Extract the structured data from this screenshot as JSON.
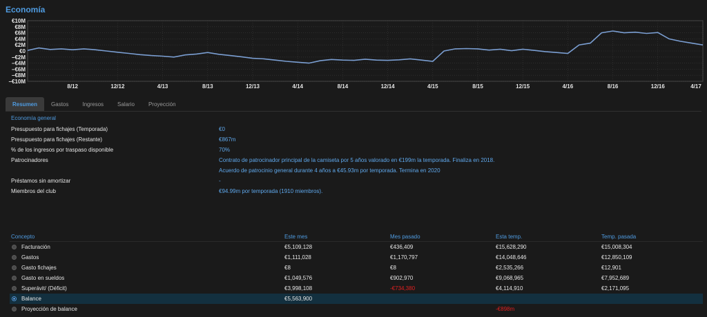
{
  "page": {
    "title": "Economía"
  },
  "chart_data": {
    "type": "line",
    "y_tick_labels": [
      "€10M",
      "€8M",
      "€6M",
      "€4M",
      "€2M",
      "€0",
      "−€2M",
      "−€4M",
      "−€6M",
      "−€8M",
      "−€10M"
    ],
    "y_tick_values": [
      10,
      8,
      6,
      4,
      2,
      0,
      -2,
      -4,
      -6,
      -8,
      -10
    ],
    "ylim": [
      -10,
      10
    ],
    "x_tick_labels": [
      "8/12",
      "12/12",
      "4/13",
      "8/13",
      "12/13",
      "4/14",
      "8/14",
      "12/14",
      "4/15",
      "8/15",
      "12/15",
      "4/16",
      "8/16",
      "12/16",
      "4/17"
    ],
    "x_tick_index": [
      4,
      8,
      12,
      16,
      20,
      24,
      28,
      32,
      36,
      40,
      44,
      48,
      52,
      56,
      60
    ],
    "grid": true,
    "line_color": "#7b9fd3",
    "values": [
      0.2,
      1.0,
      0.5,
      0.7,
      0.4,
      0.7,
      0.4,
      0,
      -0.4,
      -0.8,
      -1.2,
      -1.5,
      -1.7,
      -2.0,
      -1.3,
      -1.0,
      -0.5,
      -1.1,
      -1.5,
      -1.9,
      -2.4,
      -2.6,
      -3.0,
      -3.4,
      -3.7,
      -4.0,
      -3.2,
      -2.8,
      -3.0,
      -3.1,
      -2.7,
      -3.0,
      -3.1,
      -2.9,
      -2.6,
      -3.0,
      -3.4,
      0.0,
      0.7,
      0.8,
      0.7,
      0.3,
      0.6,
      0.1,
      0.6,
      0.2,
      -0.2,
      -0.5,
      -0.8,
      2.0,
      2.6,
      6.0,
      6.6,
      6.0,
      6.2,
      5.8,
      6.1,
      4.0,
      3.2,
      2.6,
      2.0
    ]
  },
  "tabs": [
    {
      "label": "Resumen",
      "active": true
    },
    {
      "label": "Gastos",
      "active": false
    },
    {
      "label": "Ingresos",
      "active": false
    },
    {
      "label": "Salario",
      "active": false
    },
    {
      "label": "Proyección",
      "active": false
    }
  ],
  "general": {
    "title": "Economía general",
    "rows": [
      {
        "label": "Presupuesto para fichajes (Temporada)",
        "values": [
          "€0"
        ]
      },
      {
        "label": "Presupuesto para fichajes (Restante)",
        "values": [
          "€867m"
        ]
      },
      {
        "label": "% de los ingresos por traspaso disponible",
        "values": [
          "70%"
        ]
      },
      {
        "label": "Patrocinadores",
        "values": [
          "Contrato de patrocinador principal de la camiseta por 5 años valorado en €199m la temporada. Finaliza en 2018.",
          "Acuerdo de patrocinio general durante 4 años a €45.93m por temporada. Termina en 2020"
        ]
      },
      {
        "label": "Préstamos sin amortizar",
        "values": [
          "-"
        ]
      },
      {
        "label": "Miembros del club",
        "values": [
          "€94.99m por temporada (1910 miembros)."
        ]
      }
    ]
  },
  "finance": {
    "headers": [
      "Concepto",
      "Este mes",
      "Mes pasado",
      "Esta temp.",
      "Temp. pasada"
    ],
    "rows": [
      {
        "label": "Facturación",
        "values": [
          "€5,109,128",
          "€436,409",
          "€15,628,290",
          "€15,008,304"
        ],
        "negative": [
          false,
          false,
          false,
          false
        ],
        "selected": false
      },
      {
        "label": "Gastos",
        "values": [
          "€1,111,028",
          "€1,170,797",
          "€14,048,646",
          "€12,850,109"
        ],
        "negative": [
          false,
          false,
          false,
          false
        ],
        "selected": false
      },
      {
        "label": "Gasto fichajes",
        "values": [
          "€8",
          "€8",
          "€2,535,266",
          "€12,901"
        ],
        "negative": [
          false,
          false,
          false,
          false
        ],
        "selected": false
      },
      {
        "label": "Gasto en sueldos",
        "values": [
          "€1,049,576",
          "€902,970",
          "€9,068,965",
          "€7,952,689"
        ],
        "negative": [
          false,
          false,
          false,
          false
        ],
        "selected": false
      },
      {
        "label": "Superávit/ (Déficit)",
        "values": [
          "€3,998,108",
          "-€734,380",
          "€4,114,910",
          "€2,171,095"
        ],
        "negative": [
          false,
          true,
          false,
          false
        ],
        "selected": false
      },
      {
        "label": "Balance",
        "values": [
          "€5,563,900",
          "",
          "",
          ""
        ],
        "negative": [
          false,
          false,
          false,
          false
        ],
        "selected": true
      },
      {
        "label": "Proyección de balance",
        "values": [
          "",
          "",
          "-€898m",
          ""
        ],
        "negative": [
          false,
          false,
          true,
          false
        ],
        "selected": false
      }
    ]
  }
}
